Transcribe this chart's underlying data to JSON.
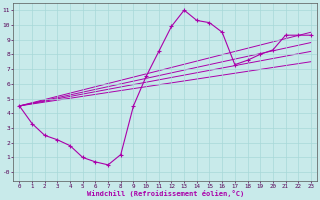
{
  "xlabel": "Windchill (Refroidissement éolien,°C)",
  "bg_color": "#c8eaea",
  "grid_color": "#a8d8d8",
  "line_color": "#aa00aa",
  "xlim": [
    -0.5,
    23.5
  ],
  "ylim": [
    -0.6,
    11.5
  ],
  "xticks": [
    0,
    1,
    2,
    3,
    4,
    5,
    6,
    7,
    8,
    9,
    10,
    11,
    12,
    13,
    14,
    15,
    16,
    17,
    18,
    19,
    20,
    21,
    22,
    23
  ],
  "yticks": [
    0,
    1,
    2,
    3,
    4,
    5,
    6,
    7,
    8,
    9,
    10,
    11
  ],
  "ylabels": [
    "-0",
    "1",
    "2",
    "3",
    "4",
    "5",
    "6",
    "7",
    "8",
    "9",
    "10",
    "11"
  ],
  "main_x": [
    0,
    1,
    2,
    3,
    4,
    5,
    6,
    7,
    8,
    9,
    10,
    11,
    12,
    13,
    14,
    15,
    16,
    17,
    18,
    19,
    20,
    21,
    22,
    23
  ],
  "main_y": [
    4.5,
    3.3,
    2.5,
    2.2,
    1.8,
    1.0,
    0.7,
    0.5,
    1.2,
    4.5,
    6.5,
    8.2,
    9.9,
    11.0,
    10.3,
    10.15,
    9.5,
    7.3,
    7.6,
    8.0,
    8.3,
    9.3,
    9.3,
    9.3
  ],
  "trend_lines": [
    {
      "x": [
        0,
        23
      ],
      "y": [
        4.5,
        9.5
      ]
    },
    {
      "x": [
        0,
        23
      ],
      "y": [
        4.5,
        8.8
      ]
    },
    {
      "x": [
        0,
        23
      ],
      "y": [
        4.5,
        8.2
      ]
    },
    {
      "x": [
        0,
        23
      ],
      "y": [
        4.5,
        7.5
      ]
    }
  ]
}
